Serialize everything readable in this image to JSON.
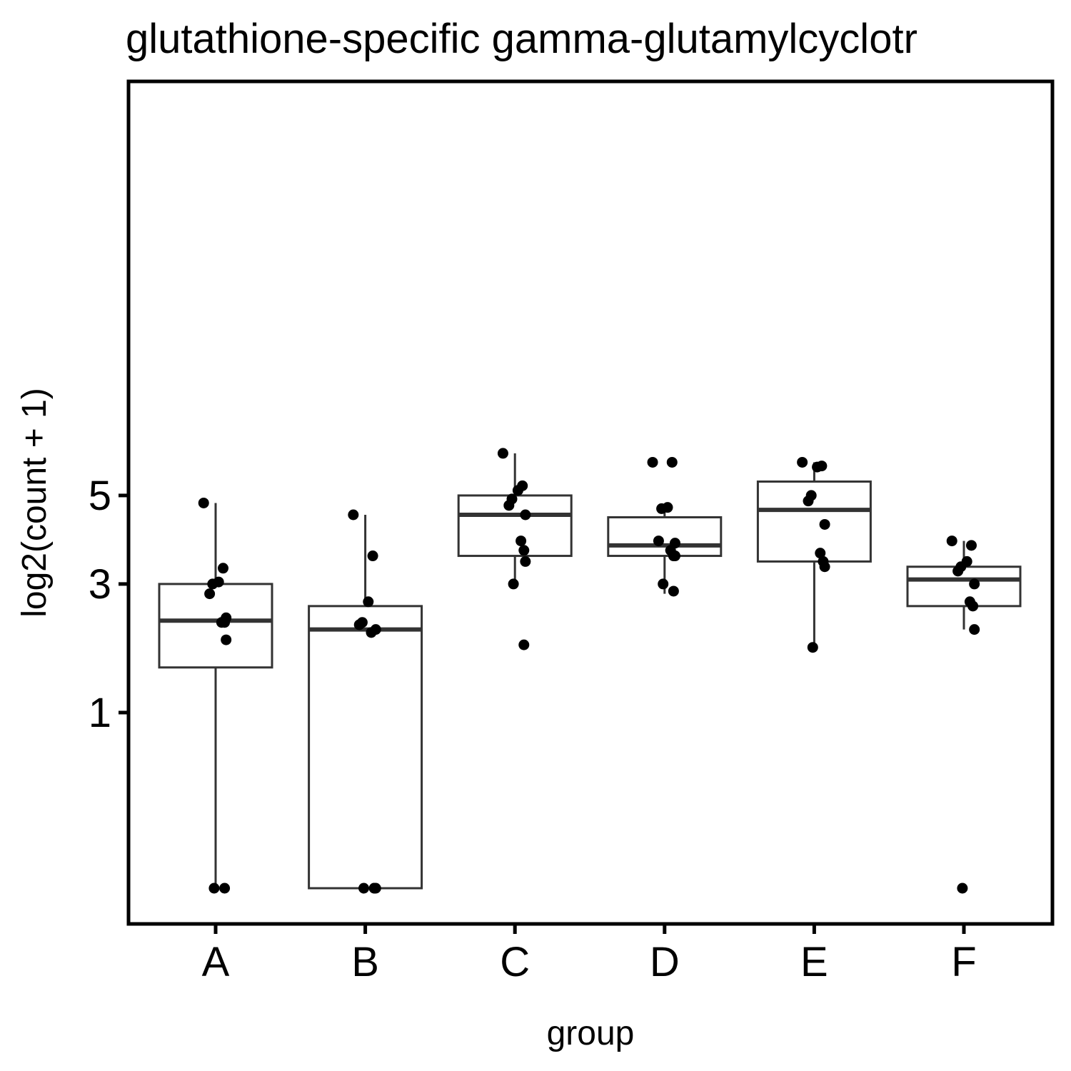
{
  "chart_data": {
    "type": "boxplot",
    "title": "glutathione-specific gamma-glutamylcyclotr",
    "xlabel": "group",
    "ylabel": "log2(count + 1)",
    "y_scale": "sqrt",
    "ylim": [
      0,
      7.13
    ],
    "y_ticks": [
      1,
      3,
      5
    ],
    "grid": false,
    "categories": [
      "A",
      "B",
      "C",
      "D",
      "E",
      "F"
    ],
    "boxes": [
      {
        "group": "A",
        "whisker_low": 0,
        "q1": 1.58,
        "median": 2.32,
        "q3": 3.0,
        "whisker_high": 4.81
      },
      {
        "group": "B",
        "whisker_low": 0,
        "q1": 0,
        "median": 2.17,
        "q3": 2.58,
        "whisker_high": 4.52
      },
      {
        "group": "C",
        "whisker_low": 3.0,
        "q1": 3.58,
        "median": 4.52,
        "q3": 5.0,
        "whisker_high": 6.13
      },
      {
        "group": "D",
        "whisker_low": 2.81,
        "q1": 3.58,
        "median": 3.81,
        "q3": 4.46,
        "whisker_high": 4.7
      },
      {
        "group": "E",
        "whisker_low": 1.88,
        "q1": 3.46,
        "median": 4.64,
        "q3": 5.36,
        "whisker_high": 5.88
      },
      {
        "group": "F",
        "whisker_low": 2.17,
        "q1": 2.58,
        "median": 3.09,
        "q3": 3.35,
        "whisker_high": 3.91
      }
    ],
    "points": [
      {
        "group": "A",
        "values": [
          4.81,
          3.32,
          3.04,
          3.0,
          2.81,
          2.37,
          2.29,
          2.29,
          2.0,
          0,
          0
        ]
      },
      {
        "group": "B",
        "values": [
          4.52,
          3.58,
          2.66,
          2.29,
          2.25,
          2.17,
          2.12,
          0,
          0,
          0,
          0
        ]
      },
      {
        "group": "C",
        "values": [
          6.13,
          5.25,
          5.13,
          4.91,
          4.75,
          4.52,
          3.91,
          3.7,
          3.46,
          3.0,
          1.92
        ]
      },
      {
        "group": "D",
        "values": [
          5.88,
          5.88,
          4.7,
          4.67,
          3.91,
          3.86,
          3.7,
          3.58,
          3.58,
          3.0,
          2.86
        ]
      },
      {
        "group": "E",
        "values": [
          5.88,
          5.78,
          5.75,
          5.0,
          4.86,
          4.29,
          3.64,
          3.46,
          3.35,
          1.88
        ]
      },
      {
        "group": "F",
        "values": [
          3.91,
          3.81,
          3.46,
          3.35,
          3.26,
          3.0,
          2.66,
          2.58,
          2.17,
          0
        ]
      }
    ]
  }
}
